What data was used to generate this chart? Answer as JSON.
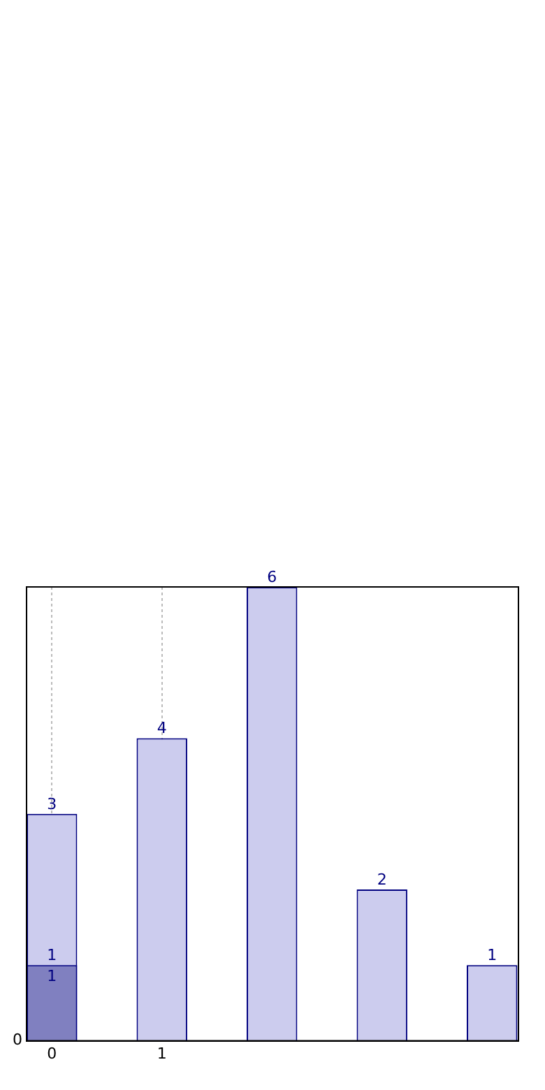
{
  "chart_data": {
    "type": "bar",
    "x": [
      0,
      1,
      2,
      3,
      4
    ],
    "series": [
      {
        "color": "#ccccee",
        "values": [
          3,
          4,
          6,
          2,
          1
        ]
      },
      {
        "color": "#8080c0",
        "values": [
          1,
          null,
          null,
          null,
          null
        ]
      }
    ],
    "xlim": [
      -0.23,
      4.24
    ],
    "xticks": [
      0,
      1
    ],
    "ylim": [
      0,
      6
    ],
    "grid": "x",
    "data_labels": true,
    "annotations": [
      {
        "text": "1",
        "x": 0,
        "y": 1
      },
      "0"
    ]
  }
}
